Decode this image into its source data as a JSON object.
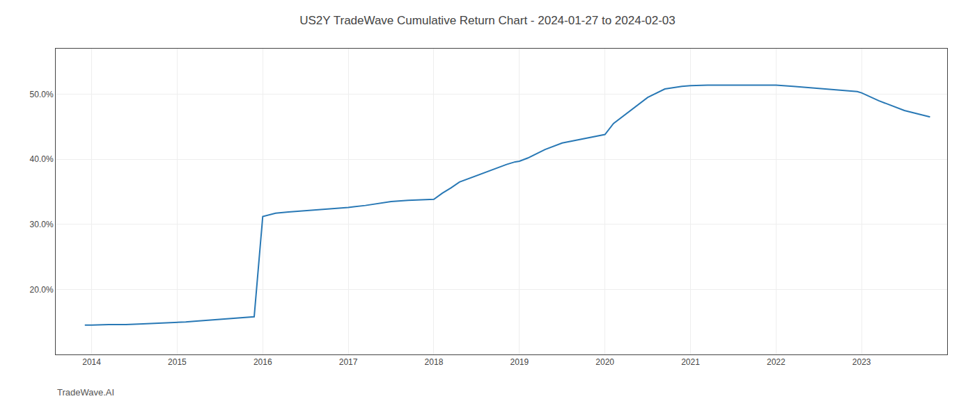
{
  "chart_data": {
    "type": "line",
    "title": "US2Y TradeWave Cumulative Return Chart - 2024-01-27 to 2024-02-03",
    "annotations": [
      {
        "text": "TradeWave.AI"
      }
    ],
    "x": [
      2013.92,
      2014.0,
      2014.2,
      2014.4,
      2014.6,
      2014.8,
      2015.0,
      2015.1,
      2015.2,
      2015.3,
      2015.4,
      2015.5,
      2015.6,
      2015.7,
      2015.8,
      2015.9,
      2016.0,
      2016.1,
      2016.15,
      2016.3,
      2016.5,
      2016.7,
      2016.9,
      2017.0,
      2017.2,
      2017.35,
      2017.5,
      2017.7,
      2017.9,
      2018.0,
      2018.1,
      2018.2,
      2018.3,
      2018.5,
      2018.7,
      2018.85,
      2018.95,
      2019.0,
      2019.1,
      2019.3,
      2019.5,
      2019.7,
      2019.9,
      2020.0,
      2020.1,
      2020.3,
      2020.5,
      2020.7,
      2020.9,
      2021.0,
      2021.2,
      2021.5,
      2021.7,
      2021.9,
      2022.0,
      2022.2,
      2022.4,
      2022.6,
      2022.8,
      2022.95,
      2023.0,
      2023.2,
      2023.5,
      2023.8
    ],
    "values": [
      14.5,
      14.5,
      14.6,
      14.6,
      14.7,
      14.8,
      14.9,
      15.0,
      15.1,
      15.2,
      15.3,
      15.4,
      15.5,
      15.6,
      15.7,
      15.8,
      31.2,
      31.5,
      31.7,
      31.9,
      32.1,
      32.3,
      32.5,
      32.6,
      32.9,
      33.2,
      33.5,
      33.7,
      33.8,
      33.85,
      34.8,
      35.6,
      36.5,
      37.5,
      38.5,
      39.2,
      39.6,
      39.7,
      40.2,
      41.5,
      42.5,
      43.0,
      43.5,
      43.8,
      45.5,
      47.5,
      49.5,
      50.8,
      51.2,
      51.3,
      51.4,
      51.4,
      51.4,
      51.4,
      51.4,
      51.2,
      51.0,
      50.8,
      50.6,
      50.4,
      50.2,
      49.0,
      47.5,
      46.5
    ],
    "color": "#2878b5",
    "xlim": [
      2013.58,
      2024.0
    ],
    "xticks": [
      2014,
      2015,
      2016,
      2017,
      2018,
      2019,
      2020,
      2021,
      2022,
      2023
    ],
    "ylim": [
      10,
      57
    ],
    "yticks": [
      {
        "value": 20.0,
        "label": "20.0%"
      },
      {
        "value": 30.0,
        "label": "30.0%"
      },
      {
        "value": 40.0,
        "label": "40.0%"
      },
      {
        "value": 50.0,
        "label": "50.0%"
      }
    ],
    "grid": true
  }
}
